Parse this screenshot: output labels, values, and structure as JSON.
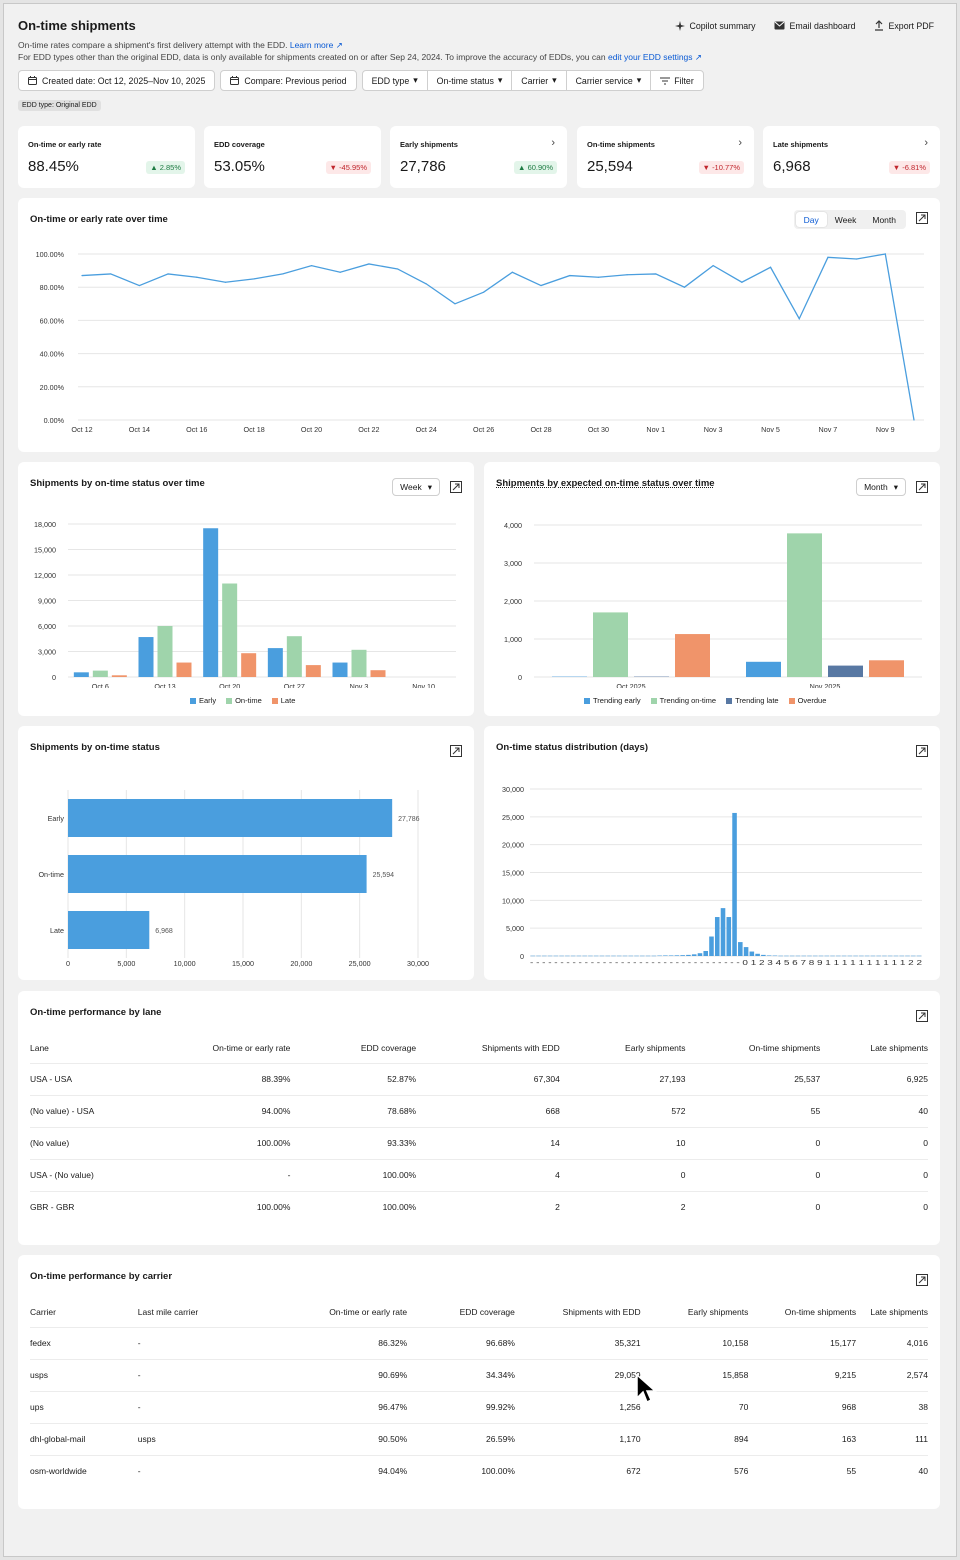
{
  "header": {
    "title": "On-time shipments",
    "subtitle_line1": "On-time rates compare a shipment's first delivery attempt with the EDD.",
    "learn_more": "Learn more",
    "subtitle_line2": "For EDD types other than the original EDD, data is only available for shipments created on or after Sep 24, 2024. To improve the accuracy of EDDs, you can",
    "edd_settings_link": "edit your EDD settings",
    "actions": {
      "copilot": "Copilot summary",
      "email": "Email dashboard",
      "export": "Export PDF"
    }
  },
  "filters": {
    "created_date": "Created date: Oct 12, 2025–Nov 10, 2025",
    "compare": "Compare: Previous period",
    "edd_type": "EDD type",
    "ontime_status": "On-time status",
    "carrier": "Carrier",
    "carrier_service": "Carrier service",
    "filter": "Filter",
    "chip": "EDD type: Original EDD"
  },
  "kpis": [
    {
      "label": "On-time or early rate",
      "value": "88.45%",
      "delta": "2.85%",
      "direction": "up",
      "has_link": false
    },
    {
      "label": "EDD coverage",
      "value": "53.05%",
      "delta": "-45.95%",
      "direction": "down",
      "has_link": false
    },
    {
      "label": "Early shipments",
      "value": "27,786",
      "delta": "60.90%",
      "direction": "up",
      "has_link": true
    },
    {
      "label": "On-time shipments",
      "value": "25,594",
      "delta": "-10.77%",
      "direction": "down",
      "has_link": true
    },
    {
      "label": "Late shipments",
      "value": "6,968",
      "delta": "-6.81%",
      "direction": "down",
      "has_link": true
    }
  ],
  "colors": {
    "blue": "#4a9ede",
    "green": "#9fd4ab",
    "orange": "#f0946a",
    "navy": "#5878a3",
    "accent": "#0a5ad4"
  },
  "line_chart": {
    "title": "On-time or early rate over time",
    "toggle": [
      "Day",
      "Week",
      "Month"
    ],
    "active": "Day"
  },
  "status_over_time": {
    "title": "Shipments by on-time status over time",
    "dropdown": "Week"
  },
  "expected_status": {
    "title": "Shipments by expected on-time status over time",
    "dropdown": "Month"
  },
  "by_status": {
    "title": "Shipments by on-time status"
  },
  "distribution": {
    "title": "On-time status distribution (days)"
  },
  "chart_data": [
    {
      "type": "line",
      "yticks": [
        "0.00%",
        "20.00%",
        "40.00%",
        "60.00%",
        "80.00%",
        "100.00%"
      ],
      "ylim": [
        0,
        100
      ],
      "xticks": [
        "Oct 12",
        "Oct 14",
        "Oct 16",
        "Oct 18",
        "Oct 20",
        "Oct 22",
        "Oct 24",
        "Oct 26",
        "Oct 28",
        "Oct 30",
        "Nov 1",
        "Nov 3",
        "Nov 5",
        "Nov 7",
        "Nov 9"
      ],
      "values": [
        87,
        88,
        81,
        88,
        86,
        83,
        85,
        88,
        93,
        89,
        94,
        91,
        82,
        70,
        77,
        89,
        81,
        87,
        86,
        87.5,
        88,
        80,
        93,
        83,
        92,
        61,
        98,
        97,
        100,
        0
      ]
    },
    {
      "type": "bar",
      "categories": [
        "Oct 6",
        "Oct 13",
        "Oct 20",
        "Oct 27",
        "Nov 3",
        "Nov 10"
      ],
      "yticks": [
        "0",
        "3,000",
        "6,000",
        "9,000",
        "12,000",
        "15,000",
        "18,000"
      ],
      "ylim": [
        0,
        18000
      ],
      "series": [
        {
          "name": "Early",
          "values": [
            550,
            4700,
            17500,
            3400,
            1700,
            0
          ]
        },
        {
          "name": "On-time",
          "values": [
            750,
            6000,
            11000,
            4800,
            3200,
            0
          ]
        },
        {
          "name": "Late",
          "values": [
            200,
            1700,
            2800,
            1400,
            800,
            0
          ]
        }
      ]
    },
    {
      "type": "bar",
      "categories": [
        "Oct 2025",
        "Nov 2025"
      ],
      "yticks": [
        "0",
        "1,000",
        "2,000",
        "3,000",
        "4,000"
      ],
      "ylim": [
        0,
        4000
      ],
      "series": [
        {
          "name": "Trending early",
          "values": [
            10,
            400
          ]
        },
        {
          "name": "Trending on-time",
          "values": [
            1700,
            3780
          ]
        },
        {
          "name": "Trending late",
          "values": [
            10,
            300
          ]
        },
        {
          "name": "Overdue",
          "values": [
            1130,
            440
          ]
        }
      ]
    },
    {
      "type": "bar",
      "orientation": "horizontal",
      "categories": [
        "Early",
        "On-time",
        "Late"
      ],
      "values": [
        27786,
        25594,
        6968
      ],
      "labels": [
        "27,786",
        "25,594",
        "6,968"
      ],
      "xticks": [
        "0",
        "5,000",
        "10,000",
        "15,000",
        "20,000",
        "25,000",
        "30,000"
      ],
      "xlim": [
        0,
        30000
      ]
    },
    {
      "type": "bar",
      "yticks": [
        "0",
        "5,000",
        "10,000",
        "15,000",
        "20,000",
        "25,000",
        "30,000"
      ],
      "ylim": [
        0,
        30000
      ],
      "values": [
        50,
        50,
        50,
        50,
        50,
        50,
        50,
        50,
        50,
        50,
        50,
        50,
        50,
        50,
        50,
        50,
        50,
        50,
        50,
        50,
        50,
        50,
        80,
        100,
        100,
        120,
        150,
        200,
        300,
        500,
        900,
        3500,
        7000,
        8600,
        7000,
        25700,
        2500,
        1600,
        800,
        400,
        200,
        100,
        80,
        50,
        50,
        50,
        50,
        50,
        50,
        50,
        50,
        50,
        50,
        50,
        50,
        50,
        50,
        50,
        50,
        50,
        50,
        50,
        50,
        50,
        50,
        50,
        50,
        50
      ],
      "xlabels_visible": "- - - - - - - - - - - - - - - - - - - - - - - - - - - - - - - - - - - 0 1 2 3 4 5 6 7 8 9 1 1 1 1 1 1 1 1 1 1 2 2"
    }
  ],
  "lane_table": {
    "title": "On-time performance by lane",
    "headers": [
      "Lane",
      "On-time or early rate",
      "EDD coverage",
      "Shipments with EDD",
      "Early shipments",
      "On-time shipments",
      "Late shipments"
    ],
    "rows": [
      [
        "USA - USA",
        "88.39%",
        "52.87%",
        "67,304",
        "27,193",
        "25,537",
        "6,925"
      ],
      [
        "(No value) - USA",
        "94.00%",
        "78.68%",
        "668",
        "572",
        "55",
        "40"
      ],
      [
        "(No value)",
        "100.00%",
        "93.33%",
        "14",
        "10",
        "0",
        "0"
      ],
      [
        "USA - (No value)",
        "-",
        "100.00%",
        "4",
        "0",
        "0",
        "0"
      ],
      [
        "GBR - GBR",
        "100.00%",
        "100.00%",
        "2",
        "2",
        "0",
        "0"
      ]
    ]
  },
  "carrier_table": {
    "title": "On-time performance by carrier",
    "headers": [
      "Carrier",
      "Last mile carrier",
      "On-time or early rate",
      "EDD coverage",
      "Shipments with EDD",
      "Early shipments",
      "On-time shipments",
      "Late shipments"
    ],
    "rows": [
      [
        "fedex",
        "-",
        "86.32%",
        "96.68%",
        "35,321",
        "10,158",
        "15,177",
        "4,016"
      ],
      [
        "usps",
        "-",
        "90.69%",
        "34.34%",
        "29,059",
        "15,858",
        "9,215",
        "2,574"
      ],
      [
        "ups",
        "-",
        "96.47%",
        "99.92%",
        "1,256",
        "70",
        "968",
        "38"
      ],
      [
        "dhl-global-mail",
        "usps",
        "90.50%",
        "26.59%",
        "1,170",
        "894",
        "163",
        "111"
      ],
      [
        "osm-worldwide",
        "-",
        "94.04%",
        "100.00%",
        "672",
        "576",
        "55",
        "40"
      ]
    ]
  }
}
